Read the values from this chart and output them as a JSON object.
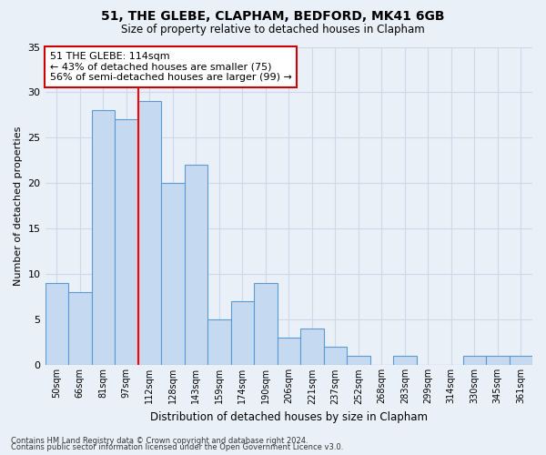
{
  "title1": "51, THE GLEBE, CLAPHAM, BEDFORD, MK41 6GB",
  "title2": "Size of property relative to detached houses in Clapham",
  "xlabel": "Distribution of detached houses by size in Clapham",
  "ylabel": "Number of detached properties",
  "categories": [
    "50sqm",
    "66sqm",
    "81sqm",
    "97sqm",
    "112sqm",
    "128sqm",
    "143sqm",
    "159sqm",
    "174sqm",
    "190sqm",
    "206sqm",
    "221sqm",
    "237sqm",
    "252sqm",
    "268sqm",
    "283sqm",
    "299sqm",
    "314sqm",
    "330sqm",
    "345sqm",
    "361sqm"
  ],
  "values": [
    9,
    8,
    28,
    27,
    29,
    20,
    22,
    5,
    7,
    9,
    3,
    4,
    2,
    1,
    0,
    1,
    0,
    0,
    1,
    1,
    1
  ],
  "bar_color": "#c5d9f0",
  "bar_edge_color": "#5b9bd5",
  "highlight_index": 4,
  "highlight_line_color": "#ff0000",
  "annotation_text": "51 THE GLEBE: 114sqm\n← 43% of detached houses are smaller (75)\n56% of semi-detached houses are larger (99) →",
  "annotation_box_color": "#ffffff",
  "annotation_box_edge": "#cc0000",
  "ylim": [
    0,
    35
  ],
  "yticks": [
    0,
    5,
    10,
    15,
    20,
    25,
    30,
    35
  ],
  "grid_color": "#d0d8e8",
  "bg_color": "#eaf0f8",
  "footer1": "Contains HM Land Registry data © Crown copyright and database right 2024.",
  "footer2": "Contains public sector information licensed under the Open Government Licence v3.0."
}
